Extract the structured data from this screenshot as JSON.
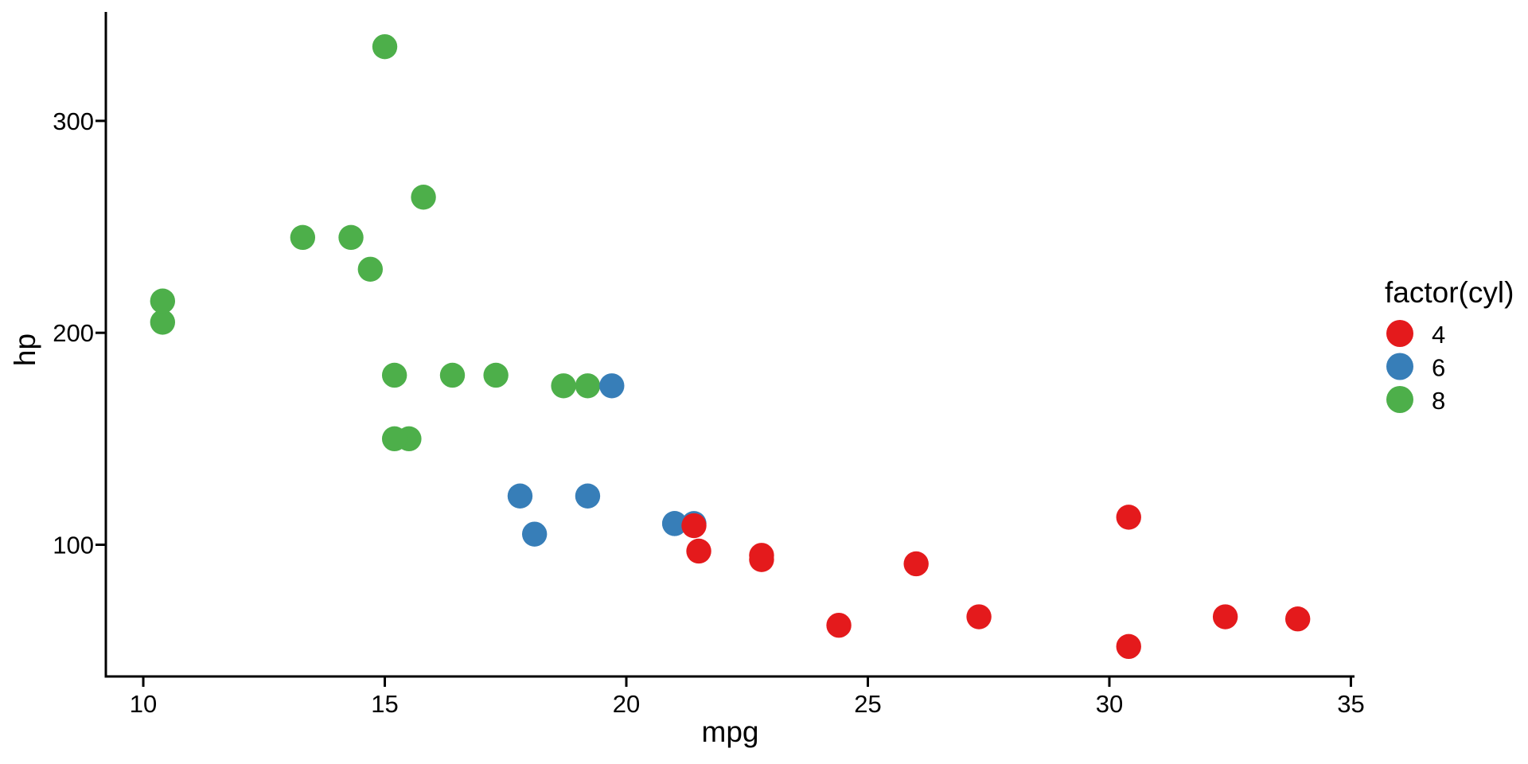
{
  "figure": {
    "background": "#FFFFFF",
    "axis_color": "#000000",
    "text_color": "#000000"
  },
  "chart_data": {
    "type": "scatter",
    "title": "",
    "xlabel": "mpg",
    "ylabel": "hp",
    "x_ticks": [
      10,
      15,
      20,
      25,
      30,
      35
    ],
    "y_ticks": [
      100,
      200,
      300
    ],
    "x_range": [
      9.225,
      35.075
    ],
    "y_range": [
      37.85,
      349.15
    ],
    "grid": false,
    "legend": {
      "title": "factor(cyl)",
      "position": "right",
      "entries": [
        {
          "label": "4",
          "color": "#E41A1C"
        },
        {
          "label": "6",
          "color": "#377EB8"
        },
        {
          "label": "8",
          "color": "#4DAF4A"
        }
      ]
    },
    "series": [
      {
        "name": "4",
        "color": "#E41A1C",
        "points": [
          [
            22.8,
            93
          ],
          [
            24.4,
            62
          ],
          [
            22.8,
            95
          ],
          [
            32.4,
            66
          ],
          [
            30.4,
            52
          ],
          [
            33.9,
            65
          ],
          [
            21.5,
            97
          ],
          [
            27.3,
            66
          ],
          [
            26.0,
            91
          ],
          [
            30.4,
            113
          ],
          [
            21.4,
            109
          ]
        ]
      },
      {
        "name": "6",
        "color": "#377EB8",
        "points": [
          [
            21.0,
            110
          ],
          [
            21.0,
            110
          ],
          [
            21.4,
            110
          ],
          [
            18.1,
            105
          ],
          [
            19.2,
            123
          ],
          [
            17.8,
            123
          ],
          [
            19.7,
            175
          ]
        ]
      },
      {
        "name": "8",
        "color": "#4DAF4A",
        "points": [
          [
            18.7,
            175
          ],
          [
            14.3,
            245
          ],
          [
            16.4,
            180
          ],
          [
            17.3,
            180
          ],
          [
            15.2,
            180
          ],
          [
            10.4,
            205
          ],
          [
            10.4,
            215
          ],
          [
            14.7,
            230
          ],
          [
            15.5,
            150
          ],
          [
            15.2,
            150
          ],
          [
            13.3,
            245
          ],
          [
            19.2,
            175
          ],
          [
            15.8,
            264
          ],
          [
            15.0,
            335
          ]
        ]
      }
    ]
  }
}
